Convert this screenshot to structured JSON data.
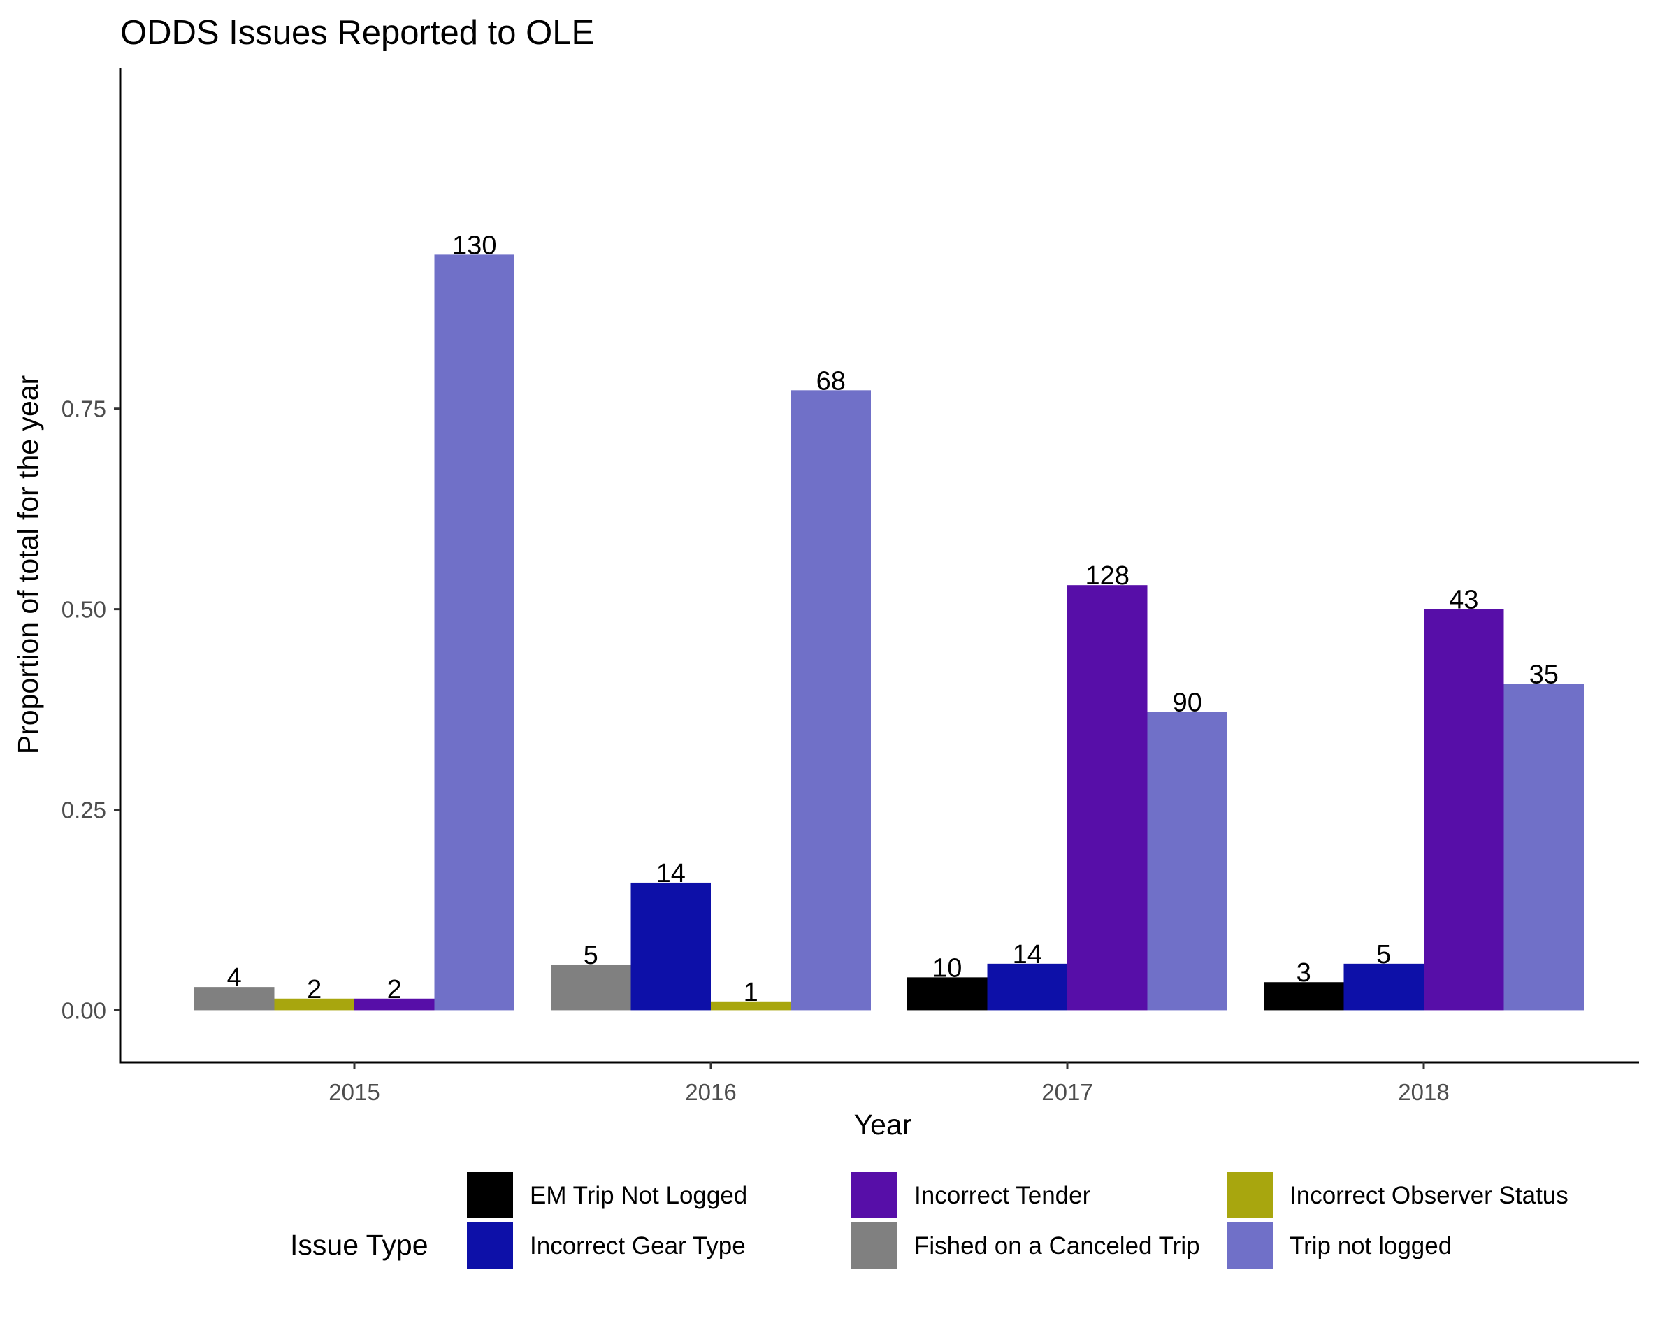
{
  "chart_data": {
    "type": "bar",
    "title": "ODDS Issues Reported to OLE",
    "xlabel": "Year",
    "ylabel": "Proportion of total for the year",
    "categories": [
      "2015",
      "2016",
      "2017",
      "2018"
    ],
    "ylim": [
      -0.065,
      1.175
    ],
    "yticks": [
      0.0,
      0.25,
      0.5,
      0.75
    ],
    "ytick_labels": [
      "0.00",
      "0.25",
      "0.50",
      "0.75"
    ],
    "grid": false,
    "legend": {
      "title": "Issue Type",
      "placement": "bottom",
      "order": [
        0,
        2,
        4,
        1,
        3,
        5
      ]
    },
    "series": [
      {
        "name": "EM Trip Not Logged",
        "color": "#000000",
        "values": [
          null,
          null,
          0.041,
          0.035
        ],
        "labels": [
          null,
          null,
          "10",
          "3"
        ]
      },
      {
        "name": "Fished on a Canceled Trip",
        "color": "#808080",
        "values": [
          0.029,
          0.057,
          null,
          null
        ],
        "labels": [
          "4",
          "5",
          null,
          null
        ]
      },
      {
        "name": "Incorrect Gear Type",
        "color": "#0d10a8",
        "values": [
          null,
          0.159,
          0.058,
          0.058
        ],
        "labels": [
          null,
          "14",
          "14",
          "5"
        ]
      },
      {
        "name": "Incorrect Observer Status",
        "color": "#a8a60e",
        "values": [
          0.0145,
          0.011,
          null,
          null
        ],
        "labels": [
          "2",
          "1",
          null,
          null
        ]
      },
      {
        "name": "Incorrect Tender",
        "color": "#570ea8",
        "values": [
          0.0145,
          null,
          0.53,
          0.5
        ],
        "labels": [
          "2",
          null,
          "128",
          "43"
        ]
      },
      {
        "name": "Trip not logged",
        "color": "#7070c8",
        "values": [
          0.942,
          0.773,
          0.372,
          0.407
        ],
        "labels": [
          "130",
          "68",
          "90",
          "35"
        ]
      }
    ]
  }
}
